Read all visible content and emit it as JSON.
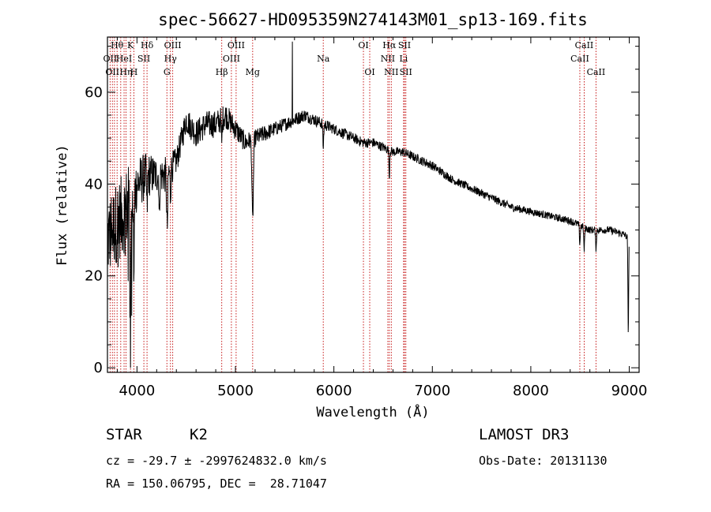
{
  "chart_data": {
    "type": "line",
    "title": "spec-56627-HD095359N274143M01_sp13-169.fits",
    "xlabel": "Wavelength (Å)",
    "ylabel": "Flux (relative)",
    "xlim": [
      3700,
      9100
    ],
    "ylim": [
      -1,
      72
    ],
    "xticks": [
      4000,
      5000,
      6000,
      7000,
      8000,
      9000
    ],
    "yticks": [
      0,
      20,
      40,
      60
    ],
    "tick_labels_x": [
      "4000",
      "5000",
      "6000",
      "7000",
      "8000",
      "9000"
    ],
    "tick_labels_y": [
      "0",
      "20",
      "40",
      "60"
    ],
    "spectrum_anchors": {
      "x": [
        3700,
        3750,
        3800,
        3850,
        3900,
        3950,
        4000,
        4100,
        4200,
        4300,
        4400,
        4500,
        4600,
        4700,
        4800,
        4900,
        5000,
        5100,
        5200,
        5300,
        5400,
        5500,
        5600,
        5700,
        5800,
        5900,
        6000,
        6100,
        6200,
        6300,
        6400,
        6500,
        6600,
        6700,
        6800,
        6900,
        7000,
        7200,
        7400,
        7600,
        7800,
        8000,
        8200,
        8400,
        8600,
        8800,
        8950,
        9000
      ],
      "y": [
        28,
        30,
        32,
        33,
        35,
        37,
        40,
        42,
        42,
        42,
        45,
        54,
        51,
        53,
        53,
        55,
        52,
        49,
        50,
        51,
        52,
        53,
        54,
        55,
        54,
        53,
        52,
        51,
        50,
        49,
        49,
        48,
        47,
        47,
        46,
        45,
        44,
        41,
        39,
        37,
        35,
        34,
        33,
        32,
        30,
        30,
        29,
        28
      ],
      "noise": [
        9,
        9,
        9,
        9,
        9,
        8,
        6,
        5,
        4,
        4,
        3,
        3,
        3,
        3,
        3,
        2.8,
        2.5,
        2.2,
        2,
        1.8,
        1.6,
        1.5,
        1.5,
        1.4,
        1.3,
        1.3,
        1.2,
        1.2,
        1.1,
        1.1,
        1.1,
        1,
        1,
        1,
        1,
        1,
        1,
        0.9,
        0.9,
        0.9,
        0.9,
        0.8,
        0.8,
        0.8,
        0.8,
        0.8,
        0.8,
        0.8
      ]
    },
    "absorption_features": [
      {
        "x": 3934,
        "depth": 20,
        "width": 6
      },
      {
        "x": 3969,
        "depth": 18,
        "width": 6
      },
      {
        "x": 4102,
        "depth": 8,
        "width": 6
      },
      {
        "x": 4227,
        "depth": 10,
        "width": 5
      },
      {
        "x": 4307,
        "depth": 12,
        "width": 8
      },
      {
        "x": 4340,
        "depth": 6,
        "width": 6
      },
      {
        "x": 4861,
        "depth": 5,
        "width": 6
      },
      {
        "x": 5175,
        "depth": 18,
        "width": 10
      },
      {
        "x": 5892,
        "depth": 5,
        "width": 6
      },
      {
        "x": 6563,
        "depth": 6,
        "width": 5
      },
      {
        "x": 8498,
        "depth": 4,
        "width": 6
      },
      {
        "x": 8542,
        "depth": 5,
        "width": 6
      },
      {
        "x": 8662,
        "depth": 4,
        "width": 6
      },
      {
        "x": 8990,
        "depth": 22,
        "width": 5
      }
    ],
    "spike": {
      "x": 5577,
      "y": 71
    },
    "line_markers": [
      {
        "wl": 3727,
        "label": "OII",
        "row": 2
      },
      {
        "wl": 3750,
        "label": "OII",
        "row": 3
      },
      {
        "wl": 3771,
        "label": "",
        "row": 0
      },
      {
        "wl": 3798,
        "label": "Hθ",
        "row": 1
      },
      {
        "wl": 3835,
        "label": "",
        "row": 0
      },
      {
        "wl": 3869,
        "label": "HeI",
        "row": 2
      },
      {
        "wl": 3889,
        "label": "Hη",
        "row": 3
      },
      {
        "wl": 3934,
        "label": "K",
        "row": 1
      },
      {
        "wl": 3969,
        "label": "H",
        "row": 3
      },
      {
        "wl": 4070,
        "label": "SII",
        "row": 2
      },
      {
        "wl": 4102,
        "label": "Hδ",
        "row": 1
      },
      {
        "wl": 4304,
        "label": "G",
        "row": 3
      },
      {
        "wl": 4340,
        "label": "Hγ",
        "row": 2
      },
      {
        "wl": 4363,
        "label": "OIII",
        "row": 1
      },
      {
        "wl": 4861,
        "label": "Hβ",
        "row": 3
      },
      {
        "wl": 4959,
        "label": "OIII",
        "row": 2
      },
      {
        "wl": 5007,
        "label": "OIII",
        "row": 1
      },
      {
        "wl": 5175,
        "label": "Mg",
        "row": 3
      },
      {
        "wl": 5892,
        "label": "Na",
        "row": 2
      },
      {
        "wl": 6300,
        "label": "OI",
        "row": 1
      },
      {
        "wl": 6364,
        "label": "OI",
        "row": 3
      },
      {
        "wl": 6548,
        "label": "NII",
        "row": 2
      },
      {
        "wl": 6563,
        "label": "Hα",
        "row": 1
      },
      {
        "wl": 6583,
        "label": "NII",
        "row": 3
      },
      {
        "wl": 6708,
        "label": "Li",
        "row": 2
      },
      {
        "wl": 6717,
        "label": "SII",
        "row": 1
      },
      {
        "wl": 6731,
        "label": "SII",
        "row": 3
      },
      {
        "wl": 8498,
        "label": "CaII",
        "row": 2
      },
      {
        "wl": 8542,
        "label": "CaII",
        "row": 1
      },
      {
        "wl": 8662,
        "label": "CaII",
        "row": 3
      }
    ]
  },
  "info": {
    "object_class": "STAR",
    "subclass": "K2",
    "survey": "LAMOST DR3",
    "cz_line": "cz = -29.7 ± -2997624832.0 km/s",
    "obs_date_line": "Obs-Date: 20131130",
    "coords_line": "RA = 150.06795, DEC =  28.71047"
  }
}
